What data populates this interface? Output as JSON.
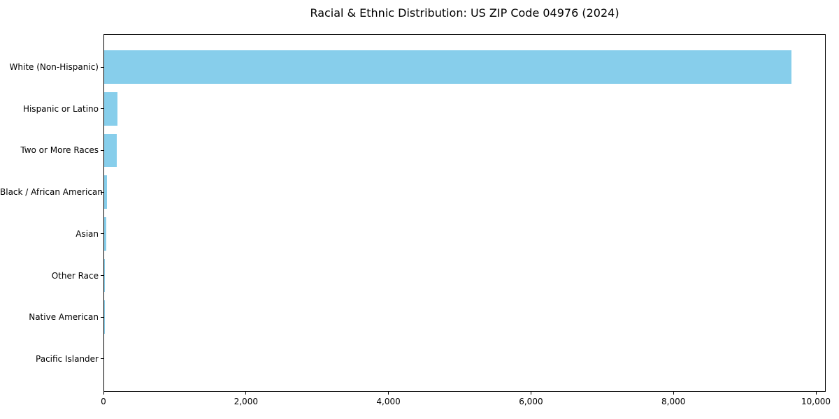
{
  "title": "Racial & Ethnic Distribution: US ZIP Code 04976 (2024)",
  "colors": {
    "bar": "#87CEEB",
    "spine": "#000000",
    "text": "#000000",
    "background": "#ffffff"
  },
  "chart_data": {
    "type": "bar",
    "orientation": "horizontal",
    "title": "Racial & Ethnic Distribution: US ZIP Code 04976 (2024)",
    "categories": [
      "White (Non-Hispanic)",
      "Hispanic or Latino",
      "Two or More Races",
      "Black / African American",
      "Asian",
      "Other Race",
      "Native American",
      "Pacific Islander"
    ],
    "values": [
      9650,
      190,
      175,
      40,
      28,
      8,
      2,
      0
    ],
    "xlabel": "",
    "ylabel": "",
    "xlim": [
      0,
      10137
    ],
    "xticks": [
      0,
      2000,
      4000,
      6000,
      8000,
      10000
    ],
    "xtick_labels": [
      "0",
      "2,000",
      "4,000",
      "6,000",
      "8,000",
      "10,000"
    ],
    "bar_color": "#87CEEB",
    "grid": false,
    "legend_position": "none"
  }
}
